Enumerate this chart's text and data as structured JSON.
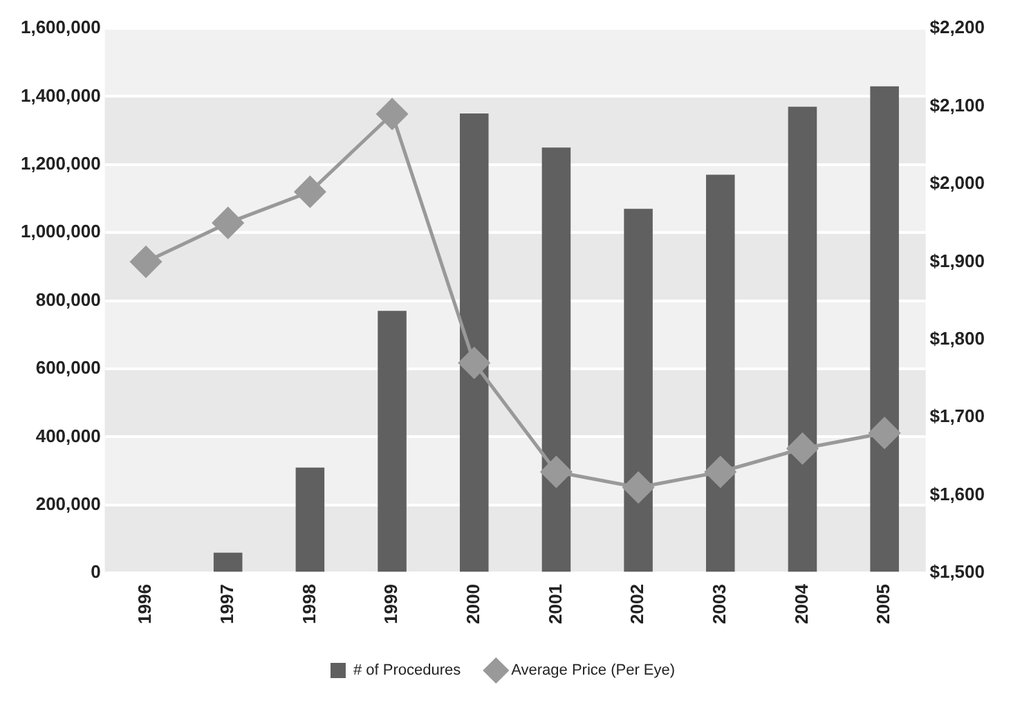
{
  "chart_data": {
    "type": "bar",
    "categories": [
      "1996",
      "1997",
      "1998",
      "1999",
      "2000",
      "2001",
      "2002",
      "2003",
      "2004",
      "2005"
    ],
    "series": [
      {
        "name": "# of Procedures",
        "color": "#606060",
        "values": [
          0,
          60000,
          310000,
          770000,
          1350000,
          1250000,
          1070000,
          1170000,
          1370000,
          1430000
        ]
      },
      {
        "name": "Average Price (Per Eye)",
        "type": "line",
        "axis": "y2",
        "color": "#999999",
        "marker": "diamond",
        "values": [
          1900,
          1950,
          1990,
          2090,
          1770,
          1630,
          1610,
          1630,
          1660,
          1680
        ]
      }
    ],
    "ylim": [
      0,
      1600000
    ],
    "yticks": [
      {
        "value": 0,
        "label": "0"
      },
      {
        "value": 200000,
        "label": "200,000"
      },
      {
        "value": 400000,
        "label": "400,000"
      },
      {
        "value": 600000,
        "label": "600,000"
      },
      {
        "value": 800000,
        "label": "800,000"
      },
      {
        "value": 1000000,
        "label": "1,000,000"
      },
      {
        "value": 1200000,
        "label": "1,200,000"
      },
      {
        "value": 1400000,
        "label": "1,400,000"
      },
      {
        "value": 1600000,
        "label": "1,600,000"
      }
    ],
    "y2lim": [
      1500,
      2200
    ],
    "y2ticks": [
      {
        "value": 1500,
        "label": "$1,500"
      },
      {
        "value": 1600,
        "label": "$1,600"
      },
      {
        "value": 1700,
        "label": "$1,700"
      },
      {
        "value": 1800,
        "label": "$1,800"
      },
      {
        "value": 1900,
        "label": "$1,900"
      },
      {
        "value": 2000,
        "label": "$2,000"
      },
      {
        "value": 2100,
        "label": "$2,100"
      },
      {
        "value": 2200,
        "label": "$2,200"
      }
    ],
    "grid": "y",
    "legend": "bottom"
  }
}
